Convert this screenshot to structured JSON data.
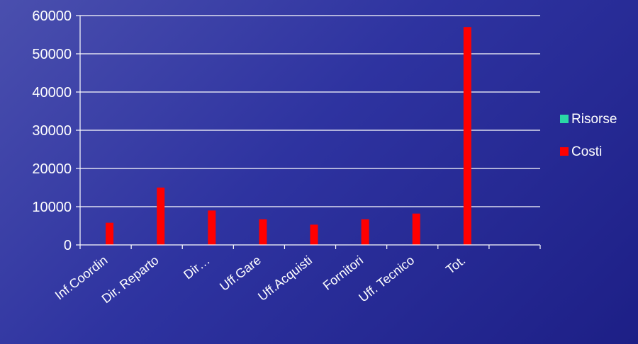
{
  "chart_data": {
    "type": "bar",
    "categories": [
      "Inf.Coordin",
      "Dir. Reparto",
      "Dir…",
      "Uff.Gare",
      "Uff.Acquisti",
      "Fornitori",
      "Uff. Tecnico",
      "Tot.",
      ""
    ],
    "series": [
      {
        "name": "Risorse",
        "color": "#2ad7a6",
        "values": [
          0,
          0,
          0,
          0,
          0,
          0,
          0,
          0,
          0
        ]
      },
      {
        "name": "Costi",
        "color": "#ff0000",
        "values": [
          5800,
          15000,
          9000,
          6700,
          5300,
          6700,
          8200,
          57000,
          0
        ]
      }
    ],
    "ylim": [
      0,
      60000
    ],
    "yticks": [
      0,
      10000,
      20000,
      30000,
      40000,
      50000,
      60000
    ],
    "grid": true,
    "legend_position": "right",
    "axis_color": "#ffffff"
  }
}
